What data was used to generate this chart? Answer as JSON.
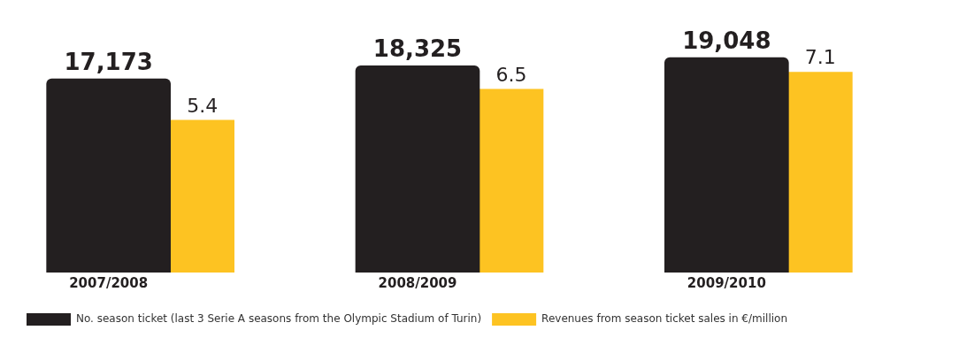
{
  "chart_data": {
    "type": "bar",
    "categories": [
      "2007/2008",
      "2008/2009",
      "2009/2010"
    ],
    "series": [
      {
        "name": "No. season ticket (last 3 Serie A seasons from the Olympic Stadium of Turin)",
        "color": "#231f20",
        "values": [
          17173,
          18325,
          19048
        ],
        "value_labels": [
          "17,173",
          "18,325",
          "19,048"
        ]
      },
      {
        "name": "Revenues from season ticket sales in €/million",
        "color": "#fdc322",
        "values": [
          5.4,
          6.5,
          7.1
        ],
        "axis": "y2",
        "value_labels": [
          "5.4",
          "6.5",
          "7.1"
        ]
      }
    ],
    "legend": "bottom left"
  }
}
